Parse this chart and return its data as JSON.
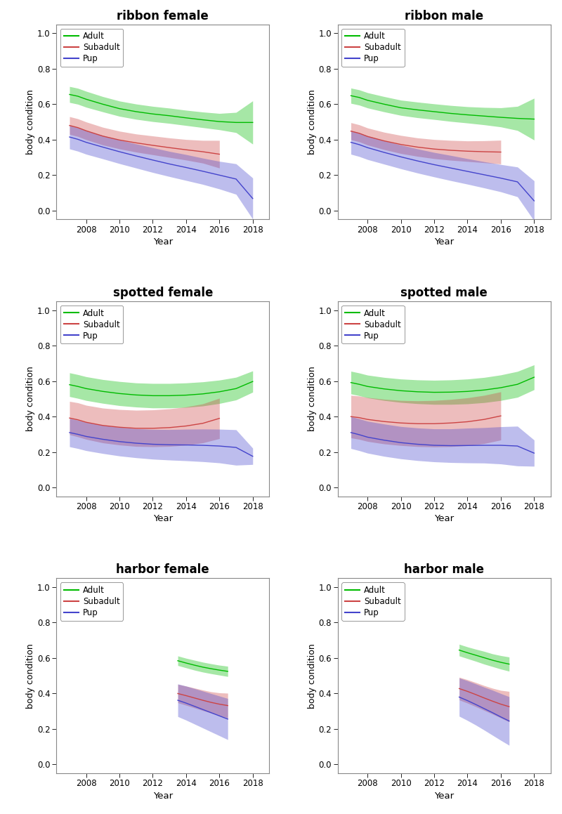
{
  "panels": [
    {
      "title": "ribbon female",
      "adult": {
        "x": [
          2007.0,
          2007.5,
          2008,
          2009,
          2010,
          2011,
          2012,
          2013,
          2014,
          2015,
          2016,
          2017,
          2018
        ],
        "y": [
          0.655,
          0.645,
          0.628,
          0.6,
          0.575,
          0.558,
          0.545,
          0.535,
          0.523,
          0.512,
          0.502,
          0.497,
          0.497
        ],
        "lower": [
          0.61,
          0.6,
          0.583,
          0.557,
          0.532,
          0.515,
          0.502,
          0.492,
          0.48,
          0.468,
          0.456,
          0.44,
          0.375
        ],
        "upper": [
          0.7,
          0.69,
          0.673,
          0.643,
          0.618,
          0.601,
          0.588,
          0.578,
          0.566,
          0.556,
          0.548,
          0.554,
          0.619
        ]
      },
      "subadult": {
        "x": [
          2007.0,
          2007.5,
          2008,
          2009,
          2010,
          2011,
          2012,
          2013,
          2014,
          2015,
          2016
        ],
        "y": [
          0.48,
          0.468,
          0.45,
          0.42,
          0.398,
          0.382,
          0.368,
          0.355,
          0.343,
          0.332,
          0.318
        ],
        "lower": [
          0.43,
          0.418,
          0.4,
          0.37,
          0.348,
          0.33,
          0.315,
          0.3,
          0.285,
          0.268,
          0.24
        ],
        "upper": [
          0.53,
          0.518,
          0.5,
          0.47,
          0.448,
          0.432,
          0.421,
          0.41,
          0.401,
          0.396,
          0.396
        ]
      },
      "pup": {
        "x": [
          2007.0,
          2007.5,
          2008,
          2009,
          2010,
          2011,
          2012,
          2013,
          2014,
          2015,
          2016,
          2017,
          2018
        ],
        "y": [
          0.415,
          0.402,
          0.385,
          0.358,
          0.332,
          0.308,
          0.285,
          0.263,
          0.243,
          0.222,
          0.2,
          0.178,
          0.068
        ],
        "lower": [
          0.348,
          0.335,
          0.318,
          0.292,
          0.265,
          0.24,
          0.215,
          0.192,
          0.17,
          0.148,
          0.122,
          0.092,
          -0.048
        ],
        "upper": [
          0.482,
          0.469,
          0.452,
          0.424,
          0.399,
          0.376,
          0.355,
          0.334,
          0.316,
          0.296,
          0.278,
          0.264,
          0.184
        ]
      }
    },
    {
      "title": "ribbon male",
      "adult": {
        "x": [
          2007.0,
          2007.5,
          2008,
          2009,
          2010,
          2011,
          2012,
          2013,
          2014,
          2015,
          2016,
          2017,
          2018
        ],
        "y": [
          0.648,
          0.638,
          0.622,
          0.6,
          0.58,
          0.568,
          0.558,
          0.548,
          0.54,
          0.533,
          0.526,
          0.52,
          0.516
        ],
        "lower": [
          0.605,
          0.595,
          0.579,
          0.557,
          0.537,
          0.524,
          0.514,
          0.503,
          0.494,
          0.484,
          0.472,
          0.452,
          0.398
        ],
        "upper": [
          0.691,
          0.681,
          0.665,
          0.643,
          0.623,
          0.612,
          0.602,
          0.593,
          0.586,
          0.582,
          0.58,
          0.588,
          0.634
        ]
      },
      "subadult": {
        "x": [
          2007.0,
          2007.5,
          2008,
          2009,
          2010,
          2011,
          2012,
          2013,
          2014,
          2015,
          2016
        ],
        "y": [
          0.448,
          0.436,
          0.418,
          0.393,
          0.373,
          0.358,
          0.347,
          0.34,
          0.335,
          0.332,
          0.33
        ],
        "lower": [
          0.4,
          0.388,
          0.37,
          0.344,
          0.322,
          0.306,
          0.293,
          0.284,
          0.277,
          0.27,
          0.263
        ],
        "upper": [
          0.496,
          0.484,
          0.466,
          0.442,
          0.424,
          0.41,
          0.401,
          0.396,
          0.393,
          0.394,
          0.397
        ]
      },
      "pup": {
        "x": [
          2007.0,
          2007.5,
          2008,
          2009,
          2010,
          2011,
          2012,
          2013,
          2014,
          2015,
          2016,
          2017,
          2018
        ],
        "y": [
          0.385,
          0.372,
          0.355,
          0.328,
          0.303,
          0.28,
          0.259,
          0.24,
          0.221,
          0.202,
          0.183,
          0.162,
          0.055
        ],
        "lower": [
          0.318,
          0.305,
          0.288,
          0.262,
          0.236,
          0.212,
          0.19,
          0.169,
          0.149,
          0.128,
          0.106,
          0.078,
          -0.058
        ],
        "upper": [
          0.452,
          0.439,
          0.422,
          0.394,
          0.37,
          0.348,
          0.328,
          0.311,
          0.293,
          0.276,
          0.26,
          0.246,
          0.168
        ]
      }
    },
    {
      "title": "spotted female",
      "adult": {
        "x": [
          2007.0,
          2007.5,
          2008,
          2009,
          2010,
          2011,
          2012,
          2013,
          2014,
          2015,
          2016,
          2017,
          2018
        ],
        "y": [
          0.58,
          0.57,
          0.558,
          0.542,
          0.53,
          0.522,
          0.518,
          0.518,
          0.521,
          0.528,
          0.54,
          0.558,
          0.598
        ],
        "lower": [
          0.513,
          0.503,
          0.491,
          0.475,
          0.462,
          0.454,
          0.449,
          0.449,
          0.452,
          0.46,
          0.474,
          0.494,
          0.538
        ],
        "upper": [
          0.647,
          0.637,
          0.625,
          0.609,
          0.598,
          0.59,
          0.587,
          0.587,
          0.59,
          0.596,
          0.606,
          0.622,
          0.658
        ]
      },
      "subadult": {
        "x": [
          2007.0,
          2007.5,
          2008,
          2009,
          2010,
          2011,
          2012,
          2013,
          2014,
          2015,
          2016
        ],
        "y": [
          0.392,
          0.382,
          0.368,
          0.35,
          0.34,
          0.334,
          0.334,
          0.338,
          0.347,
          0.362,
          0.39
        ],
        "lower": [
          0.298,
          0.286,
          0.272,
          0.252,
          0.24,
          0.232,
          0.23,
          0.232,
          0.239,
          0.252,
          0.276
        ],
        "upper": [
          0.486,
          0.478,
          0.464,
          0.448,
          0.44,
          0.436,
          0.438,
          0.444,
          0.455,
          0.472,
          0.504
        ]
      },
      "pup": {
        "x": [
          2007.0,
          2007.5,
          2008,
          2009,
          2010,
          2011,
          2012,
          2013,
          2014,
          2015,
          2016,
          2017,
          2018
        ],
        "y": [
          0.31,
          0.3,
          0.288,
          0.272,
          0.259,
          0.25,
          0.244,
          0.241,
          0.24,
          0.238,
          0.234,
          0.226,
          0.176
        ],
        "lower": [
          0.23,
          0.22,
          0.208,
          0.192,
          0.178,
          0.168,
          0.16,
          0.155,
          0.151,
          0.146,
          0.139,
          0.126,
          0.13
        ],
        "upper": [
          0.39,
          0.38,
          0.368,
          0.352,
          0.34,
          0.332,
          0.328,
          0.327,
          0.329,
          0.33,
          0.329,
          0.326,
          0.222
        ]
      }
    },
    {
      "title": "spotted male",
      "adult": {
        "x": [
          2007.0,
          2007.5,
          2008,
          2009,
          2010,
          2011,
          2012,
          2013,
          2014,
          2015,
          2016,
          2017,
          2018
        ],
        "y": [
          0.592,
          0.582,
          0.57,
          0.556,
          0.546,
          0.54,
          0.537,
          0.538,
          0.542,
          0.55,
          0.563,
          0.582,
          0.622
        ],
        "lower": [
          0.528,
          0.518,
          0.506,
          0.491,
          0.48,
          0.473,
          0.469,
          0.469,
          0.472,
          0.479,
          0.491,
          0.509,
          0.552
        ],
        "upper": [
          0.656,
          0.646,
          0.634,
          0.621,
          0.612,
          0.607,
          0.605,
          0.607,
          0.612,
          0.621,
          0.635,
          0.655,
          0.692
        ]
      },
      "subadult": {
        "x": [
          2007.0,
          2007.5,
          2008,
          2009,
          2010,
          2011,
          2012,
          2013,
          2014,
          2015,
          2016
        ],
        "y": [
          0.4,
          0.394,
          0.384,
          0.372,
          0.364,
          0.36,
          0.36,
          0.364,
          0.371,
          0.384,
          0.404
        ],
        "lower": [
          0.28,
          0.272,
          0.26,
          0.246,
          0.237,
          0.231,
          0.229,
          0.231,
          0.236,
          0.248,
          0.268
        ],
        "upper": [
          0.52,
          0.516,
          0.508,
          0.498,
          0.491,
          0.489,
          0.491,
          0.497,
          0.506,
          0.52,
          0.54
        ]
      },
      "pup": {
        "x": [
          2007.0,
          2007.5,
          2008,
          2009,
          2010,
          2011,
          2012,
          2013,
          2014,
          2015,
          2016,
          2017,
          2018
        ],
        "y": [
          0.31,
          0.298,
          0.284,
          0.267,
          0.253,
          0.244,
          0.238,
          0.236,
          0.237,
          0.238,
          0.238,
          0.234,
          0.194
        ],
        "lower": [
          0.22,
          0.208,
          0.194,
          0.176,
          0.162,
          0.152,
          0.145,
          0.141,
          0.139,
          0.138,
          0.133,
          0.122,
          0.12
        ],
        "upper": [
          0.4,
          0.388,
          0.374,
          0.358,
          0.344,
          0.336,
          0.331,
          0.331,
          0.335,
          0.338,
          0.343,
          0.346,
          0.268
        ]
      }
    },
    {
      "title": "harbor female",
      "adult": {
        "x": [
          2013.5,
          2014,
          2014.5,
          2015,
          2015.5,
          2016,
          2016.5
        ],
        "y": [
          0.585,
          0.572,
          0.56,
          0.549,
          0.54,
          0.532,
          0.525
        ],
        "lower": [
          0.558,
          0.545,
          0.532,
          0.521,
          0.512,
          0.504,
          0.496
        ],
        "upper": [
          0.612,
          0.599,
          0.588,
          0.577,
          0.568,
          0.56,
          0.554
        ]
      },
      "subadult": {
        "x": [
          2013.5,
          2014,
          2014.5,
          2015,
          2015.5,
          2016,
          2016.5
        ],
        "y": [
          0.4,
          0.388,
          0.375,
          0.362,
          0.35,
          0.34,
          0.332
        ],
        "lower": [
          0.348,
          0.334,
          0.319,
          0.304,
          0.29,
          0.276,
          0.262
        ],
        "upper": [
          0.452,
          0.442,
          0.431,
          0.42,
          0.41,
          0.404,
          0.402
        ]
      },
      "pup": {
        "x": [
          2013.5,
          2014,
          2014.5,
          2015,
          2015.5,
          2016,
          2016.5
        ],
        "y": [
          0.362,
          0.346,
          0.328,
          0.31,
          0.292,
          0.274,
          0.256
        ],
        "lower": [
          0.27,
          0.25,
          0.228,
          0.206,
          0.184,
          0.162,
          0.14
        ],
        "upper": [
          0.454,
          0.442,
          0.428,
          0.414,
          0.4,
          0.386,
          0.372
        ]
      }
    },
    {
      "title": "harbor male",
      "adult": {
        "x": [
          2013.5,
          2014,
          2014.5,
          2015,
          2015.5,
          2016,
          2016.5
        ],
        "y": [
          0.645,
          0.63,
          0.616,
          0.602,
          0.588,
          0.576,
          0.566
        ],
        "lower": [
          0.612,
          0.597,
          0.582,
          0.566,
          0.552,
          0.538,
          0.526
        ],
        "upper": [
          0.678,
          0.663,
          0.65,
          0.638,
          0.624,
          0.614,
          0.606
        ]
      },
      "subadult": {
        "x": [
          2013.5,
          2014,
          2014.5,
          2015,
          2015.5,
          2016,
          2016.5
        ],
        "y": [
          0.428,
          0.412,
          0.394,
          0.375,
          0.357,
          0.34,
          0.326
        ],
        "lower": [
          0.364,
          0.346,
          0.326,
          0.305,
          0.284,
          0.262,
          0.24
        ],
        "upper": [
          0.492,
          0.478,
          0.462,
          0.445,
          0.43,
          0.418,
          0.412
        ]
      },
      "pup": {
        "x": [
          2013.5,
          2014,
          2014.5,
          2015,
          2015.5,
          2016,
          2016.5
        ],
        "y": [
          0.38,
          0.36,
          0.338,
          0.315,
          0.292,
          0.268,
          0.245
        ],
        "lower": [
          0.272,
          0.248,
          0.222,
          0.194,
          0.165,
          0.136,
          0.108
        ],
        "upper": [
          0.488,
          0.472,
          0.454,
          0.436,
          0.419,
          0.4,
          0.382
        ]
      }
    }
  ],
  "adult_color": "#00BB00",
  "subadult_color": "#CC4444",
  "pup_color": "#4444CC",
  "adult_fill_alpha": 0.35,
  "subadult_fill_alpha": 0.35,
  "pup_fill_alpha": 0.35,
  "ylim": [
    -0.05,
    1.05
  ],
  "yticks": [
    0.0,
    0.2,
    0.4,
    0.6,
    0.8,
    1.0
  ],
  "xticks": [
    2008,
    2010,
    2012,
    2014,
    2016,
    2018
  ],
  "xlim": [
    2006.2,
    2019.0
  ],
  "xlabel": "Year",
  "ylabel": "body condition"
}
